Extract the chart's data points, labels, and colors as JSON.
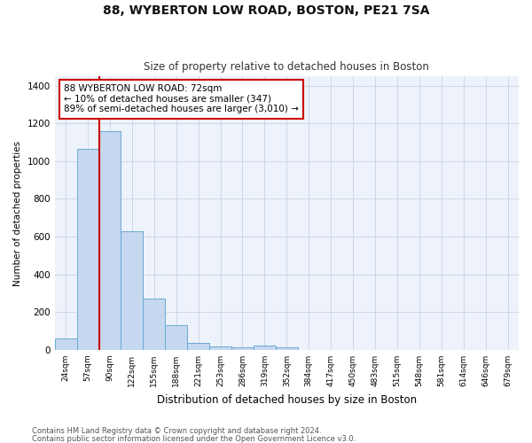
{
  "title": "88, WYBERTON LOW ROAD, BOSTON, PE21 7SA",
  "subtitle": "Size of property relative to detached houses in Boston",
  "xlabel": "Distribution of detached houses by size in Boston",
  "ylabel": "Number of detached properties",
  "categories": [
    "24sqm",
    "57sqm",
    "90sqm",
    "122sqm",
    "155sqm",
    "188sqm",
    "221sqm",
    "253sqm",
    "286sqm",
    "319sqm",
    "352sqm",
    "384sqm",
    "417sqm",
    "450sqm",
    "483sqm",
    "515sqm",
    "548sqm",
    "581sqm",
    "614sqm",
    "646sqm",
    "679sqm"
  ],
  "values": [
    60,
    1065,
    1160,
    630,
    270,
    130,
    38,
    20,
    15,
    25,
    15,
    0,
    0,
    0,
    0,
    0,
    0,
    0,
    0,
    0,
    0
  ],
  "bar_color": "#c5d8ef",
  "bar_edge_color": "#6aaad4",
  "grid_color": "#c8d4e8",
  "bg_color": "#eef2fa",
  "annotation_text": "88 WYBERTON LOW ROAD: 72sqm\n← 10% of detached houses are smaller (347)\n89% of semi-detached houses are larger (3,010) →",
  "annotation_box_color": "#ffffff",
  "annotation_border_color": "#cc0000",
  "redline_color": "#cc0000",
  "ylim": [
    0,
    1450
  ],
  "yticks": [
    0,
    200,
    400,
    600,
    800,
    1000,
    1200,
    1400
  ],
  "footer1": "Contains HM Land Registry data © Crown copyright and database right 2024.",
  "footer2": "Contains public sector information licensed under the Open Government Licence v3.0."
}
